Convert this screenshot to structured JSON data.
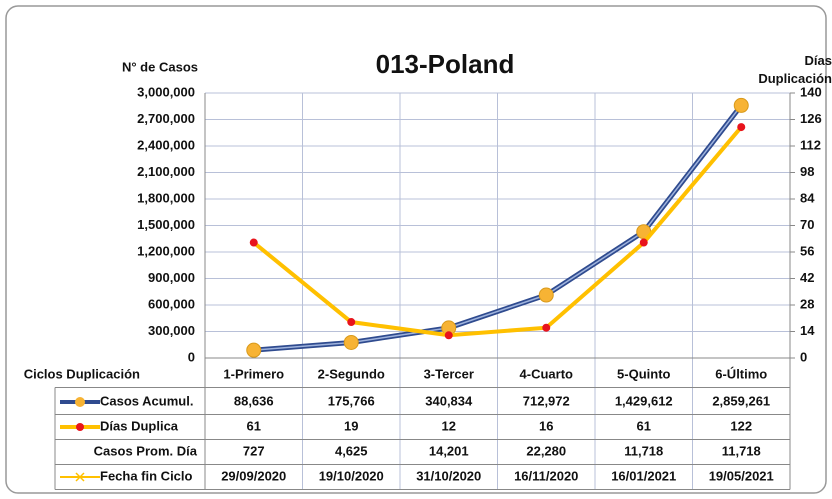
{
  "chart_data": {
    "type": "line",
    "title": "013-Poland",
    "y_label": "N° de Casos",
    "y2_label": "Días Duplicación",
    "table_header": "Ciclos Duplicación",
    "categories": [
      "1-Primero",
      "2-Segundo",
      "3-Tercer",
      "4-Cuarto",
      "5-Quinto",
      "6-Último"
    ],
    "series": [
      {
        "name": "Casos Acumul.",
        "color": "#2f4b8f",
        "marker_color": "#f7b334",
        "values": [
          88636,
          175766,
          340834,
          712972,
          1429612,
          2859261
        ],
        "value_labels": [
          "88,636",
          "175,766",
          "340,834",
          "712,972",
          "1,429,612",
          "2,859,261"
        ]
      },
      {
        "name": "Días Duplica",
        "color": "#ffc000",
        "marker_color": "#e8141c",
        "axis": "y2",
        "values": [
          61,
          19,
          12,
          16,
          61,
          122
        ]
      }
    ],
    "table_rows": [
      {
        "name": "Casos Prom. Día",
        "values": [
          727,
          4625,
          14201,
          22280,
          11718,
          11718
        ],
        "value_labels": [
          "727",
          "4,625",
          "14,201",
          "22,280",
          "11,718",
          "11,718"
        ]
      },
      {
        "name": "Fecha fin Ciclo",
        "color": "#ffc000",
        "values": [
          "29/09/2020",
          "19/10/2020",
          "31/10/2020",
          "16/11/2020",
          "16/01/2021",
          "19/05/2021"
        ]
      }
    ],
    "ylim": [
      0,
      3000000
    ],
    "yticks": [
      0,
      {
        "value": 300000,
        "label": "300,000"
      },
      {
        "value": 600000,
        "label": "600,000"
      },
      {
        "value": 900000,
        "label": "900,000"
      },
      {
        "value": 1200000,
        "label": "1,200,000"
      },
      {
        "value": 1500000,
        "label": "1,500,000"
      },
      {
        "value": 1800000,
        "label": "1,800,000"
      },
      {
        "value": 2100000,
        "label": "2,100,000"
      },
      {
        "value": 2400000,
        "label": "2,400,000"
      },
      {
        "value": 2700000,
        "label": "2,700,000"
      },
      {
        "value": 3000000,
        "label": "3,000,000"
      }
    ],
    "y2lim": [
      0,
      140
    ],
    "y2ticks": [
      0,
      14,
      28,
      42,
      56,
      70,
      84,
      98,
      112,
      126,
      140
    ],
    "grid": true
  }
}
